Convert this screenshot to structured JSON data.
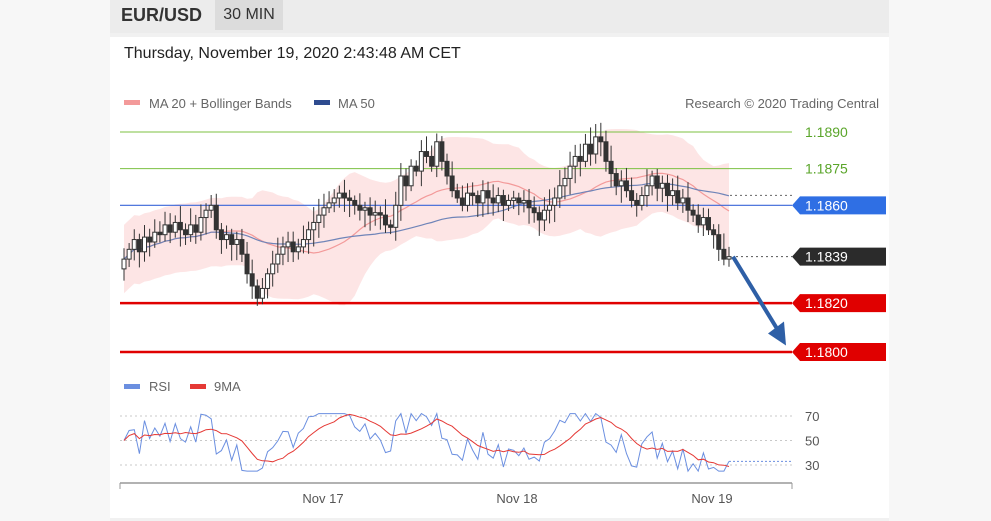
{
  "header": {
    "symbol": "EUR/USD",
    "timeframe": "30 MIN"
  },
  "datetime": "Thursday, November 19, 2020 2:43:48 AM CET",
  "legend": {
    "ma20": "MA 20 + Bollinger Bands",
    "ma50": "MA 50",
    "rsi": "RSI",
    "ma9": "9MA"
  },
  "credit": "Research © 2020 Trading Central",
  "colors": {
    "candle": "#333333",
    "bbfill": "#fbd3d3",
    "ma20": "#f39a9a",
    "ma50": "#6f84b8",
    "support": "#e00000",
    "resistance": "#7cc142",
    "pivot": "#3a66d8",
    "current": "#2b2b2b",
    "rsi": "#6b8fe0",
    "rsi_ma": "#e53935",
    "arrow": "#2e5fa6"
  },
  "chart_data": [
    {
      "type": "candlestick",
      "x_ticks": [
        "Nov 17",
        "Nov 18",
        "Nov 19"
      ],
      "ylim": [
        1.1796,
        1.1898
      ],
      "levels": [
        {
          "value": "1.1890",
          "kind": "resistance"
        },
        {
          "value": "1.1875",
          "kind": "resistance"
        },
        {
          "value": "1.1860",
          "kind": "pivot"
        },
        {
          "value": "1.1839",
          "kind": "current"
        },
        {
          "value": "1.1820",
          "kind": "support"
        },
        {
          "value": "1.1800",
          "kind": "support"
        }
      ],
      "arrow": {
        "from": 1.1839,
        "to": 1.1801,
        "direction": "down"
      },
      "closes": [
        1.1838,
        1.1842,
        1.1846,
        1.1841,
        1.1847,
        1.1845,
        1.1849,
        1.1848,
        1.1852,
        1.1849,
        1.1853,
        1.185,
        1.1848,
        1.1852,
        1.1849,
        1.1855,
        1.1858,
        1.186,
        1.185,
        1.1846,
        1.1848,
        1.1844,
        1.1846,
        1.184,
        1.1832,
        1.1827,
        1.1822,
        1.1826,
        1.1832,
        1.1836,
        1.184,
        1.1843,
        1.1845,
        1.1841,
        1.1843,
        1.1846,
        1.185,
        1.1853,
        1.1856,
        1.1859,
        1.1861,
        1.1863,
        1.1865,
        1.1863,
        1.1862,
        1.186,
        1.1858,
        1.1859,
        1.1856,
        1.1857,
        1.1856,
        1.1852,
        1.1851,
        1.186,
        1.1872,
        1.1868,
        1.1876,
        1.1874,
        1.1882,
        1.188,
        1.1876,
        1.1886,
        1.1878,
        1.1872,
        1.1866,
        1.1863,
        1.186,
        1.1865,
        1.1864,
        1.1861,
        1.1866,
        1.1863,
        1.1861,
        1.1864,
        1.186,
        1.1862,
        1.1863,
        1.1861,
        1.1862,
        1.1859,
        1.1857,
        1.1854,
        1.1858,
        1.186,
        1.1863,
        1.1868,
        1.1871,
        1.1876,
        1.188,
        1.1878,
        1.1885,
        1.1881,
        1.1888,
        1.1886,
        1.1878,
        1.1873,
        1.1868,
        1.187,
        1.1866,
        1.1862,
        1.186,
        1.1864,
        1.1868,
        1.1872,
        1.1867,
        1.1869,
        1.1864,
        1.1866,
        1.1861,
        1.1863,
        1.1858,
        1.1856,
        1.1852,
        1.1855,
        1.185,
        1.1848,
        1.1842,
        1.1838,
        1.1839
      ],
      "rsi_axis": [
        "70",
        "50",
        "30"
      ],
      "rsi_last": 33
    }
  ]
}
